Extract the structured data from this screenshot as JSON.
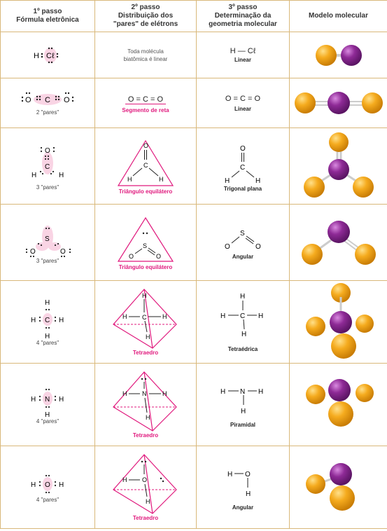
{
  "headers": {
    "c1_line1": "1º passo",
    "c1_line2": "Fórmula eletrônica",
    "c2_line1": "2º passo",
    "c2_line2": "Distribuição dos",
    "c2_line3": "\"pares\" de elétrons",
    "c3_line1": "3º passo",
    "c3_line2": "Determinação da",
    "c3_line3": "geometria molecular",
    "c4": "Modelo molecular"
  },
  "rows": [
    {
      "pairs": "",
      "note1": "Toda molécula",
      "note2": "biatômica é linear",
      "formula": "H — Cℓ",
      "geometry": "Linear"
    },
    {
      "pairs": "2 \"pares\"",
      "dist_formula": "O = C = O",
      "dist_label": "Segmento de reta",
      "formula": "O = C = O",
      "geometry": "Linear"
    },
    {
      "pairs": "3 \"pares\"",
      "dist_label": "Triângulo equilátero",
      "geometry": "Trigonal plana"
    },
    {
      "pairs": "3 \"pares\"",
      "dist_label": "Triângulo equilátero",
      "geometry": "Angular"
    },
    {
      "pairs": "4 \"pares\"",
      "dist_label": "Tetraedro",
      "geometry": "Tetraédrica"
    },
    {
      "pairs": "4 \"pares\"",
      "dist_label": "Tetraedro",
      "geometry": "Piramidal"
    },
    {
      "pairs": "4 \"pares\"",
      "dist_label": "Tetraedro",
      "geometry": "Angular"
    }
  ],
  "atoms": {
    "H": "H",
    "Cl": "Cℓ",
    "O": "O",
    "C": "C",
    "S": "S",
    "N": "N"
  },
  "colors": {
    "border": "#d9b87a",
    "accent": "#e0197d",
    "orange_atom": "#f2a51c",
    "purple_atom": "#8e2a96"
  }
}
